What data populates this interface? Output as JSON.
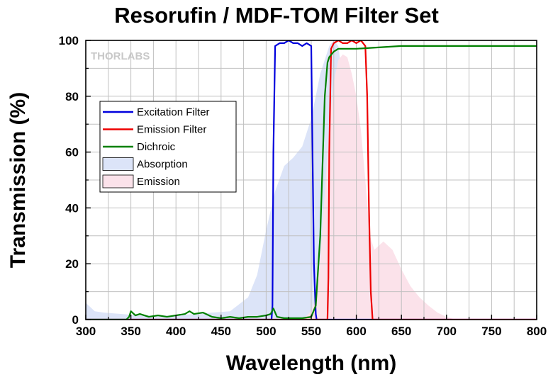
{
  "chart_data": {
    "type": "line",
    "title": "Resorufin / MDF-TOM Filter Set",
    "xlabel": "Wavelength (nm)",
    "ylabel": "Transmission (%)",
    "xlim": [
      300,
      800
    ],
    "ylim": [
      0,
      100
    ],
    "x_ticks": [
      "300",
      "350",
      "400",
      "450",
      "500",
      "550",
      "600",
      "650",
      "700",
      "750",
      "800"
    ],
    "y_ticks": [
      "0",
      "20",
      "40",
      "60",
      "80",
      "100"
    ],
    "grid": true,
    "legend_position": "upper-left",
    "watermark": "THORLABS",
    "series": [
      {
        "name": "Excitation Filter",
        "kind": "line",
        "color": "#0000dd",
        "x": [
          300,
          506,
          507,
          508,
          510,
          515,
          520,
          525,
          530,
          535,
          540,
          545,
          550,
          551,
          553,
          555,
          556,
          800
        ],
        "y": [
          0,
          0,
          5,
          60,
          98,
          99,
          99,
          100,
          99,
          99,
          98,
          99,
          98,
          70,
          20,
          2,
          0,
          0
        ]
      },
      {
        "name": "Emission Filter",
        "kind": "line",
        "color": "#ee0000",
        "x": [
          300,
          568,
          569,
          570,
          572,
          575,
          580,
          585,
          590,
          595,
          600,
          605,
          610,
          612,
          614,
          616,
          618,
          800
        ],
        "y": [
          0,
          0,
          15,
          60,
          97,
          99,
          100,
          99,
          99,
          100,
          99,
          100,
          98,
          80,
          40,
          10,
          0,
          0
        ]
      },
      {
        "name": "Dichroic",
        "kind": "line",
        "color": "#008000",
        "x": [
          300,
          345,
          348,
          350,
          355,
          360,
          370,
          380,
          390,
          400,
          410,
          415,
          420,
          430,
          440,
          450,
          460,
          470,
          480,
          490,
          500,
          505,
          508,
          512,
          520,
          530,
          540,
          550,
          555,
          560,
          563,
          565,
          568,
          570,
          575,
          580,
          600,
          650,
          700,
          750,
          790,
          800
        ],
        "y": [
          0,
          0,
          1,
          3,
          1.5,
          2,
          1,
          1.5,
          1,
          1.5,
          2,
          3,
          2,
          2.5,
          1,
          0.5,
          1,
          0.5,
          1,
          1,
          1.5,
          2,
          4,
          1,
          0.5,
          0.5,
          0.5,
          1,
          5,
          30,
          60,
          80,
          92,
          94,
          96,
          97,
          97,
          98,
          98,
          98,
          98,
          98
        ]
      },
      {
        "name": "Absorption",
        "kind": "area",
        "color": "#dce4f8",
        "x": [
          300,
          310,
          320,
          340,
          360,
          380,
          400,
          420,
          440,
          460,
          480,
          490,
          500,
          510,
          520,
          530,
          540,
          550,
          560,
          570,
          575,
          580,
          585,
          590,
          600,
          610,
          620,
          640,
          660
        ],
        "y": [
          6,
          3,
          2.5,
          2,
          1.5,
          1.5,
          1.5,
          2,
          2.5,
          3,
          8,
          16,
          32,
          46,
          55,
          58,
          62,
          72,
          88,
          98,
          100,
          98,
          85,
          60,
          20,
          6,
          2,
          0.5,
          0
        ]
      },
      {
        "name": "Emission",
        "kind": "area",
        "color": "#fbe2ea",
        "x": [
          540,
          550,
          555,
          560,
          565,
          570,
          575,
          580,
          585,
          590,
          595,
          600,
          605,
          610,
          615,
          620,
          630,
          640,
          650,
          660,
          670,
          680,
          690,
          700,
          710
        ],
        "y": [
          0,
          3,
          8,
          22,
          45,
          70,
          85,
          93,
          95,
          94,
          88,
          80,
          68,
          50,
          30,
          25,
          28,
          25,
          18,
          12,
          8,
          5,
          2.5,
          1,
          0
        ]
      }
    ]
  }
}
